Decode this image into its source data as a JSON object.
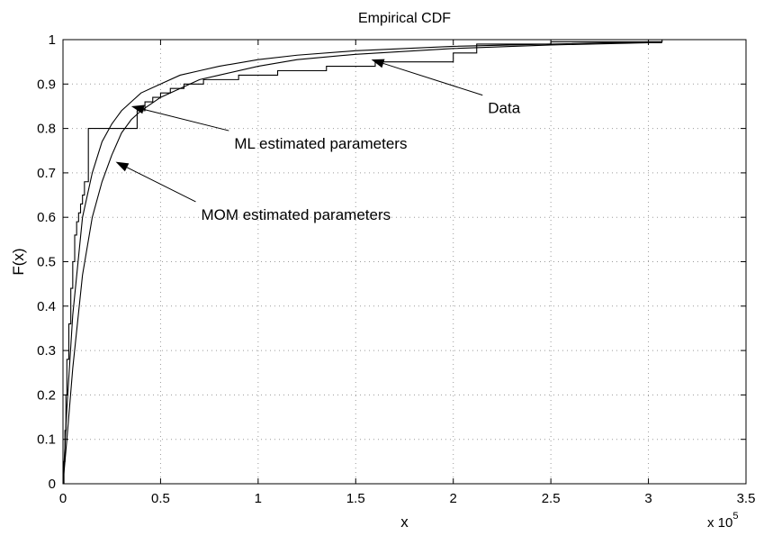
{
  "chart_data": {
    "type": "line",
    "title": "Empirical CDF",
    "xlabel": "x",
    "ylabel": "F(x)",
    "x_multiplier_label": "x 10",
    "x_multiplier_exponent": "5",
    "xlim": [
      0,
      3.5
    ],
    "ylim": [
      0,
      1
    ],
    "x_unit_scale": 100000,
    "xticks": [
      "0",
      "0.5",
      "1",
      "1.5",
      "2",
      "2.5",
      "3",
      "3.5"
    ],
    "xtick_values": [
      0,
      0.5,
      1,
      1.5,
      2,
      2.5,
      3,
      3.5
    ],
    "yticks": [
      "0",
      "0.1",
      "0.2",
      "0.3",
      "0.4",
      "0.5",
      "0.6",
      "0.7",
      "0.8",
      "0.9",
      "1"
    ],
    "ytick_values": [
      0,
      0.1,
      0.2,
      0.3,
      0.4,
      0.5,
      0.6,
      0.7,
      0.8,
      0.9,
      1
    ],
    "grid": true,
    "series": [
      {
        "name": "Data",
        "style": "step",
        "x": [
          0,
          0.005,
          0.01,
          0.015,
          0.02,
          0.03,
          0.04,
          0.05,
          0.06,
          0.07,
          0.08,
          0.09,
          0.1,
          0.11,
          0.13,
          0.38,
          0.42,
          0.46,
          0.5,
          0.55,
          0.62,
          0.72,
          0.8,
          0.9,
          1.1,
          1.35,
          1.6,
          2.0,
          2.12,
          2.5,
          3.07
        ],
        "y": [
          0.0,
          0.05,
          0.12,
          0.2,
          0.28,
          0.36,
          0.44,
          0.5,
          0.56,
          0.59,
          0.61,
          0.63,
          0.65,
          0.68,
          0.8,
          0.84,
          0.86,
          0.87,
          0.88,
          0.89,
          0.9,
          0.91,
          0.91,
          0.92,
          0.93,
          0.94,
          0.95,
          0.97,
          0.99,
          0.995,
          1.0
        ]
      },
      {
        "name": "ML estimated parameters",
        "style": "smooth",
        "x": [
          0,
          0.02,
          0.05,
          0.1,
          0.15,
          0.2,
          0.25,
          0.3,
          0.35,
          0.4,
          0.5,
          0.6,
          0.7,
          0.8,
          1.0,
          1.2,
          1.5,
          2.0,
          2.5,
          3.0,
          3.07
        ],
        "y": [
          0,
          0.17,
          0.38,
          0.6,
          0.7,
          0.77,
          0.81,
          0.84,
          0.86,
          0.88,
          0.9,
          0.92,
          0.93,
          0.94,
          0.955,
          0.965,
          0.975,
          0.985,
          0.99,
          0.995,
          0.995
        ]
      },
      {
        "name": "MOM estimated parameters",
        "style": "smooth",
        "x": [
          0,
          0.02,
          0.05,
          0.1,
          0.15,
          0.2,
          0.25,
          0.3,
          0.35,
          0.4,
          0.5,
          0.6,
          0.7,
          0.8,
          1.0,
          1.2,
          1.5,
          2.0,
          2.5,
          3.0,
          3.07
        ],
        "y": [
          0,
          0.1,
          0.26,
          0.47,
          0.6,
          0.68,
          0.74,
          0.79,
          0.82,
          0.84,
          0.87,
          0.89,
          0.91,
          0.92,
          0.94,
          0.955,
          0.967,
          0.98,
          0.988,
          0.993,
          0.993
        ]
      }
    ],
    "annotations": [
      {
        "text": "Data",
        "target": [
          1.58,
          0.955
        ],
        "anchor": [
          2.15,
          0.875
        ]
      },
      {
        "text": "ML estimated parameters",
        "target": [
          0.35,
          0.85
        ],
        "anchor": [
          0.85,
          0.795
        ]
      },
      {
        "text": "MOM estimated parameters",
        "target": [
          0.27,
          0.725
        ],
        "anchor": [
          0.68,
          0.635
        ]
      }
    ]
  }
}
